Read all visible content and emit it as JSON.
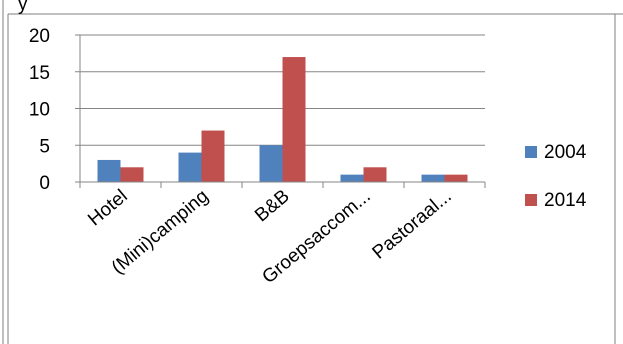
{
  "header_fragment": "y",
  "chart_data": {
    "type": "bar",
    "title": "",
    "xlabel": "",
    "ylabel": "",
    "categories": [
      "Hotel",
      "(Mini)camping",
      "B&B",
      "Groepsaccom...",
      "Pastoraal..."
    ],
    "series": [
      {
        "name": "2004",
        "color": "#4F81BD",
        "values": [
          3,
          4,
          5,
          1,
          1
        ]
      },
      {
        "name": "2014",
        "color": "#C0504D",
        "values": [
          2,
          7,
          17,
          2,
          1
        ]
      }
    ],
    "ylim": [
      0,
      20
    ],
    "yticks": [
      0,
      5,
      10,
      15,
      20
    ],
    "grid": true,
    "legend_position": "right"
  }
}
